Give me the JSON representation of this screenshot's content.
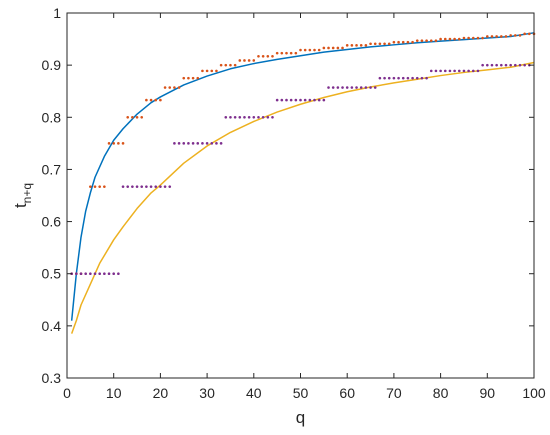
{
  "chart_data": {
    "type": "line",
    "xlabel": "q",
    "ylabel": "t",
    "ylabel_subscript": "n+q",
    "xlim": [
      0,
      100
    ],
    "ylim": [
      0.3,
      1
    ],
    "xticks": [
      "0",
      "10",
      "20",
      "30",
      "40",
      "50",
      "60",
      "70",
      "80",
      "90",
      "100"
    ],
    "yticks": [
      "0.3",
      "0.4",
      "0.5",
      "0.6",
      "0.7",
      "0.8",
      "0.9",
      "1"
    ],
    "grid": false,
    "legend": "none",
    "series": [
      {
        "kind": "line",
        "color": "#0072BD",
        "x": [
          1,
          2,
          3,
          4,
          5,
          6,
          8,
          10,
          12,
          15,
          18,
          20,
          25,
          30,
          35,
          40,
          45,
          50,
          55,
          60,
          65,
          70,
          75,
          80,
          85,
          90,
          95,
          100
        ],
        "y": [
          0.41,
          0.5,
          0.57,
          0.62,
          0.655,
          0.685,
          0.725,
          0.756,
          0.778,
          0.806,
          0.828,
          0.839,
          0.862,
          0.879,
          0.893,
          0.903,
          0.911,
          0.918,
          0.925,
          0.93,
          0.935,
          0.939,
          0.943,
          0.946,
          0.949,
          0.952,
          0.955,
          0.962
        ]
      },
      {
        "kind": "line",
        "color": "#EDB120",
        "x": [
          1,
          2,
          3,
          5,
          7,
          10,
          12,
          15,
          18,
          20,
          25,
          30,
          35,
          40,
          45,
          50,
          55,
          60,
          65,
          70,
          75,
          80,
          85,
          90,
          95,
          100
        ],
        "y": [
          0.385,
          0.41,
          0.44,
          0.48,
          0.52,
          0.565,
          0.59,
          0.625,
          0.655,
          0.67,
          0.712,
          0.745,
          0.771,
          0.792,
          0.81,
          0.825,
          0.838,
          0.849,
          0.858,
          0.866,
          0.873,
          0.88,
          0.886,
          0.891,
          0.896,
          0.905
        ]
      },
      {
        "kind": "steps",
        "color": "#D95319",
        "levels": [
          {
            "y": 0.5,
            "x0": 1,
            "x1": 3
          },
          {
            "y": 0.667,
            "x0": 5,
            "x1": 8
          },
          {
            "y": 0.75,
            "x0": 9,
            "x1": 12
          },
          {
            "y": 0.8,
            "x0": 13,
            "x1": 16
          },
          {
            "y": 0.833,
            "x0": 17,
            "x1": 20
          },
          {
            "y": 0.857,
            "x0": 21,
            "x1": 24
          },
          {
            "y": 0.875,
            "x0": 25,
            "x1": 28
          },
          {
            "y": 0.889,
            "x0": 29,
            "x1": 32
          },
          {
            "y": 0.9,
            "x0": 33,
            "x1": 36
          },
          {
            "y": 0.909,
            "x0": 37,
            "x1": 40
          },
          {
            "y": 0.917,
            "x0": 41,
            "x1": 44
          },
          {
            "y": 0.923,
            "x0": 45,
            "x1": 49
          },
          {
            "y": 0.929,
            "x0": 50,
            "x1": 54
          },
          {
            "y": 0.933,
            "x0": 55,
            "x1": 59
          },
          {
            "y": 0.938,
            "x0": 60,
            "x1": 64
          },
          {
            "y": 0.941,
            "x0": 65,
            "x1": 69
          },
          {
            "y": 0.944,
            "x0": 70,
            "x1": 74
          },
          {
            "y": 0.947,
            "x0": 75,
            "x1": 79
          },
          {
            "y": 0.95,
            "x0": 80,
            "x1": 84
          },
          {
            "y": 0.952,
            "x0": 85,
            "x1": 89
          },
          {
            "y": 0.955,
            "x0": 90,
            "x1": 94
          },
          {
            "y": 0.957,
            "x0": 95,
            "x1": 97
          },
          {
            "y": 0.96,
            "x0": 98,
            "x1": 100
          }
        ]
      },
      {
        "kind": "steps",
        "color": "#7E2F8E",
        "levels": [
          {
            "y": 0.5,
            "x0": 1,
            "x1": 11
          },
          {
            "y": 0.667,
            "x0": 12,
            "x1": 22
          },
          {
            "y": 0.75,
            "x0": 23,
            "x1": 33
          },
          {
            "y": 0.8,
            "x0": 34,
            "x1": 44
          },
          {
            "y": 0.833,
            "x0": 45,
            "x1": 55
          },
          {
            "y": 0.857,
            "x0": 56,
            "x1": 66
          },
          {
            "y": 0.875,
            "x0": 67,
            "x1": 77
          },
          {
            "y": 0.889,
            "x0": 78,
            "x1": 88
          },
          {
            "y": 0.9,
            "x0": 89,
            "x1": 99
          }
        ]
      }
    ]
  }
}
